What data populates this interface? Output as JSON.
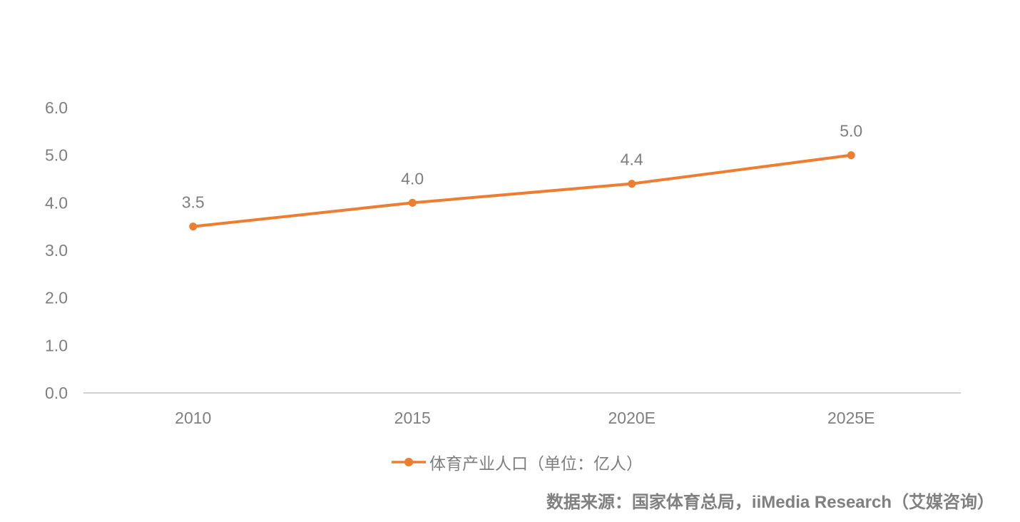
{
  "chart_data": {
    "type": "line",
    "title": "",
    "categories": [
      "2010",
      "2015",
      "2020E",
      "2025E"
    ],
    "series": [
      {
        "name": "体育产业人口（单位：亿人）",
        "values": [
          3.5,
          4.0,
          4.4,
          5.0
        ],
        "color": "#ED7D31"
      }
    ],
    "data_labels": [
      "3.5",
      "4.0",
      "4.4",
      "5.0"
    ],
    "y_ticks": [
      "0.0",
      "1.0",
      "2.0",
      "3.0",
      "4.0",
      "5.0",
      "6.0"
    ],
    "ylim": [
      0,
      6
    ],
    "xlabel": "",
    "ylabel": "",
    "grid": false,
    "legend_position": "bottom",
    "colors": {
      "line": "#ED7D31",
      "text": "#7F7F7F",
      "axis": "#D0D0D0"
    }
  },
  "legend": {
    "label": "体育产业人口（单位：亿人）"
  },
  "source": {
    "text": "数据来源：国家体育总局，iiMedia Research（艾媒咨询）"
  }
}
